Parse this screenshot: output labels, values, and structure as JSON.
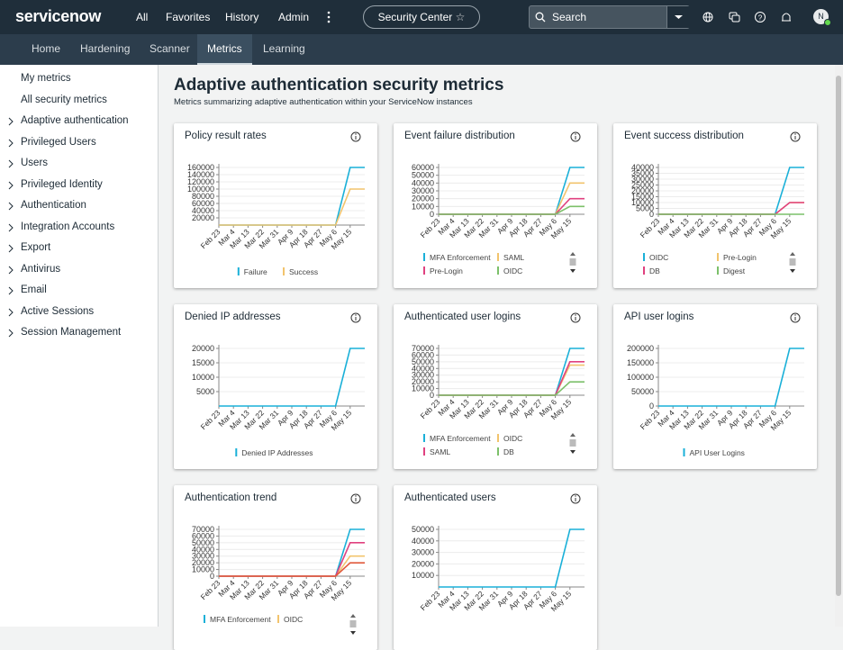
{
  "header": {
    "logo": "servicenow",
    "nav": [
      "All",
      "Favorites",
      "History",
      "Admin"
    ],
    "app": "Security Center",
    "search": "Search",
    "avatar": "N"
  },
  "tabs": {
    "items": [
      "Home",
      "Hardening",
      "Scanner",
      "Metrics",
      "Learning"
    ],
    "active": 3
  },
  "sidebar": {
    "links": [
      "My metrics",
      "All security metrics"
    ],
    "groups": [
      "Adaptive authentication",
      "Privileged Users",
      "Users",
      "Privileged Identity",
      "Authentication",
      "Integration Accounts",
      "Export",
      "Antivirus",
      "Email",
      "Active Sessions",
      "Session Management"
    ]
  },
  "page": {
    "title": "Adaptive authentication security metrics",
    "subtitle": "Metrics summarizing adaptive authentication within your ServiceNow instances"
  },
  "cards": [
    {
      "title": "Policy result rates",
      "chart": {
        "type": "line",
        "legend": "row",
        "grid": true,
        "categories": [
          "Feb 23",
          "Mar 4",
          "Mar 13",
          "Mar 22",
          "Mar 31",
          "Apr 9",
          "Apr 18",
          "Apr 27",
          "May 6",
          "May 15",
          null
        ],
        "ylim": [
          0,
          160000
        ],
        "yticks": [
          20000,
          40000,
          60000,
          80000,
          100000,
          120000,
          140000,
          160000
        ],
        "series": [
          {
            "name": "Failure",
            "color": "#1ab0d8",
            "values": [
              0,
              0,
              0,
              0,
              0,
              0,
              0,
              0,
              0,
              160000,
              160000
            ]
          },
          {
            "name": "Success",
            "color": "#f2c46d",
            "values": [
              0,
              0,
              0,
              0,
              0,
              0,
              0,
              0,
              0,
              100000,
              100000
            ]
          }
        ]
      }
    },
    {
      "title": "Event failure distribution",
      "chart": {
        "type": "line",
        "legend": "grid",
        "grid": true,
        "categories": [
          "Feb 23",
          "Mar 4",
          "Mar 13",
          "Mar 22",
          "Mar 31",
          "Apr 9",
          "Apr 18",
          "Apr 27",
          "May 6",
          "May 15",
          null
        ],
        "ylim": [
          0,
          60000
        ],
        "yticks": [
          0,
          10000,
          20000,
          30000,
          40000,
          50000,
          60000
        ],
        "series": [
          {
            "name": "MFA Enforcement",
            "color": "#1ab0d8",
            "values": [
              0,
              0,
              0,
              0,
              0,
              0,
              0,
              0,
              0,
              60000,
              60000
            ]
          },
          {
            "name": "SAML",
            "color": "#f2c46d",
            "values": [
              0,
              0,
              0,
              0,
              0,
              0,
              0,
              0,
              0,
              40000,
              40000
            ]
          },
          {
            "name": "Pre-Login",
            "color": "#e0417f",
            "values": [
              0,
              0,
              0,
              0,
              0,
              0,
              0,
              0,
              0,
              20000,
              20000
            ]
          },
          {
            "name": "OIDC",
            "color": "#7cc06a",
            "values": [
              0,
              0,
              0,
              0,
              0,
              0,
              0,
              0,
              0,
              10000,
              10000
            ]
          }
        ]
      }
    },
    {
      "title": "Event success distribution",
      "chart": {
        "type": "line",
        "legend": "grid",
        "grid": true,
        "categories": [
          "Feb 23",
          "Mar 4",
          "Mar 13",
          "Mar 22",
          "Mar 31",
          "Apr 9",
          "Apr 18",
          "Apr 27",
          "May 6",
          "May 15",
          null
        ],
        "ylim": [
          0,
          40000
        ],
        "yticks": [
          0,
          5000,
          10000,
          15000,
          20000,
          25000,
          30000,
          35000,
          40000
        ],
        "series": [
          {
            "name": "OIDC",
            "color": "#1ab0d8",
            "values": [
              0,
              0,
              0,
              0,
              0,
              0,
              0,
              0,
              0,
              40000,
              40000
            ]
          },
          {
            "name": "Pre-Login",
            "color": "#f2c46d",
            "values": [
              0,
              0,
              0,
              0,
              0,
              0,
              0,
              0,
              0,
              10000,
              10000
            ]
          },
          {
            "name": "DB",
            "color": "#e0417f",
            "values": [
              0,
              0,
              0,
              0,
              0,
              0,
              0,
              0,
              0,
              10000,
              10000
            ]
          },
          {
            "name": "Digest",
            "color": "#7cc06a",
            "values": [
              0,
              0,
              0,
              0,
              0,
              0,
              0,
              0,
              0,
              0,
              0
            ]
          }
        ]
      }
    },
    {
      "title": "Denied IP addresses",
      "chart": {
        "type": "line",
        "legend": "row",
        "grid": true,
        "categories": [
          "Feb 23",
          "Mar 4",
          "Mar 13",
          "Mar 22",
          "Mar 31",
          "Apr 9",
          "Apr 18",
          "Apr 27",
          "May 6",
          "May 15",
          null
        ],
        "ylim": [
          0,
          20000
        ],
        "yticks": [
          5000,
          10000,
          15000,
          20000
        ],
        "series": [
          {
            "name": "Denied IP Addresses",
            "color": "#1ab0d8",
            "values": [
              0,
              0,
              0,
              0,
              0,
              0,
              0,
              0,
              0,
              20000,
              20000
            ]
          }
        ]
      }
    },
    {
      "title": "Authenticated user logins",
      "chart": {
        "type": "line",
        "legend": "grid",
        "grid": true,
        "categories": [
          "Feb 23",
          "Mar 4",
          "Mar 13",
          "Mar 22",
          "Mar 31",
          "Apr 9",
          "Apr 18",
          "Apr 27",
          "May 6",
          "May 15",
          null
        ],
        "ylim": [
          0,
          70000
        ],
        "yticks": [
          0,
          10000,
          20000,
          30000,
          40000,
          50000,
          60000,
          70000
        ],
        "series": [
          {
            "name": "MFA Enforcement",
            "color": "#1ab0d8",
            "values": [
              0,
              0,
              0,
              0,
              0,
              0,
              0,
              0,
              0,
              70000,
              70000
            ]
          },
          {
            "name": "OIDC",
            "color": "#f2c46d",
            "values": [
              0,
              0,
              0,
              0,
              0,
              0,
              0,
              0,
              0,
              45000,
              45000
            ]
          },
          {
            "name": "SAML",
            "color": "#e0417f",
            "values": [
              0,
              0,
              0,
              0,
              0,
              0,
              0,
              0,
              0,
              50000,
              50000
            ]
          },
          {
            "name": "DB",
            "color": "#7cc06a",
            "values": [
              0,
              0,
              0,
              0,
              0,
              0,
              0,
              0,
              0,
              20000,
              20000
            ]
          }
        ]
      }
    },
    {
      "title": "API user logins",
      "chart": {
        "type": "line",
        "legend": "row",
        "grid": true,
        "categories": [
          "Feb 23",
          "Mar 4",
          "Mar 13",
          "Mar 22",
          "Mar 31",
          "Apr 9",
          "Apr 18",
          "Apr 27",
          "May 6",
          "May 15",
          null
        ],
        "ylim": [
          0,
          200000
        ],
        "yticks": [
          0,
          50000,
          100000,
          150000,
          200000
        ],
        "series": [
          {
            "name": "API User Logins",
            "color": "#1ab0d8",
            "values": [
              0,
              0,
              0,
              0,
              0,
              0,
              0,
              0,
              0,
              200000,
              200000
            ]
          }
        ]
      }
    },
    {
      "title": "Authentication trend",
      "chart": {
        "type": "line",
        "legend": "grid",
        "grid": true,
        "categories": [
          "Feb 23",
          "Mar 4",
          "Mar 13",
          "Mar 22",
          "Mar 31",
          "Apr 9",
          "Apr 18",
          "Apr 27",
          "May 6",
          "May 15",
          null
        ],
        "ylim": [
          0,
          70000
        ],
        "yticks": [
          0,
          10000,
          20000,
          30000,
          40000,
          50000,
          60000,
          70000
        ],
        "series": [
          {
            "name": "MFA Enforcement",
            "color": "#1ab0d8",
            "values": [
              0,
              0,
              0,
              0,
              0,
              0,
              0,
              0,
              0,
              70000,
              70000
            ]
          },
          {
            "name": "OIDC",
            "color": "#f2c46d",
            "values": [
              0,
              0,
              0,
              0,
              0,
              0,
              0,
              0,
              0,
              30000,
              30000
            ]
          },
          {
            "color": "#e0417f",
            "values": [
              0,
              0,
              0,
              0,
              0,
              0,
              0,
              0,
              0,
              50000,
              50000
            ]
          },
          {
            "color": "#e05a3c",
            "values": [
              0,
              0,
              0,
              0,
              0,
              0,
              0,
              0,
              0,
              20000,
              20000
            ]
          }
        ]
      }
    },
    {
      "title": "Authenticated users",
      "chart": {
        "type": "line",
        "legend": "none",
        "grid": true,
        "categories": [
          "Feb 23",
          "Mar 4",
          "Mar 13",
          "Mar 22",
          "Mar 31",
          "Apr 9",
          "Apr 18",
          "Apr 27",
          "May 6",
          "May 15",
          null
        ],
        "ylim": [
          0,
          50000
        ],
        "yticks": [
          10000,
          20000,
          30000,
          40000,
          50000
        ],
        "series": [
          {
            "color": "#1ab0d8",
            "values": [
              0,
              0,
              0,
              0,
              0,
              0,
              0,
              0,
              0,
              50000,
              50000
            ]
          }
        ]
      }
    }
  ]
}
